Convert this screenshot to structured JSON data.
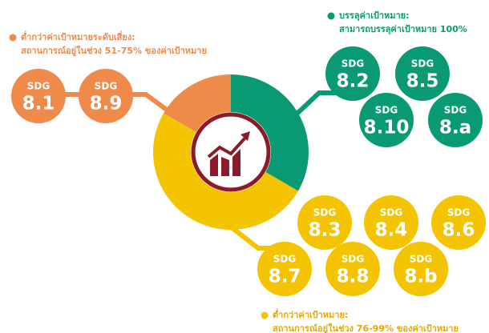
{
  "chart_data": {
    "type": "donut",
    "prefix": "SDG",
    "series": [
      {
        "name": "บรรลุค่าเป้าหมาย:",
        "detail": "สามารถบรรลุค่าเป้าหมาย 100%",
        "color": "#0a9a73",
        "value": 4,
        "items": [
          "8.2",
          "8.5",
          "8.10",
          "8.a"
        ]
      },
      {
        "name": "ต่ำกว่าค่าเป้าหมาย:",
        "detail": "สถานการณ์อยู่ในช่วง 76-99% ของค่าเป้าหมาย",
        "color": "#f5c400",
        "value": 6,
        "items": [
          "8.3",
          "8.4",
          "8.6",
          "8.7",
          "8.8",
          "8.b"
        ]
      },
      {
        "name": "ต่ำกว่าค่าเป้าหมายระดับเสี่ยง:",
        "detail": "สถานการณ์อยู่ในช่วง 51-75% ของค่าเป้าหมาย",
        "color": "#f08a4b",
        "value": 2,
        "items": [
          "8.1",
          "8.9"
        ]
      }
    ]
  }
}
